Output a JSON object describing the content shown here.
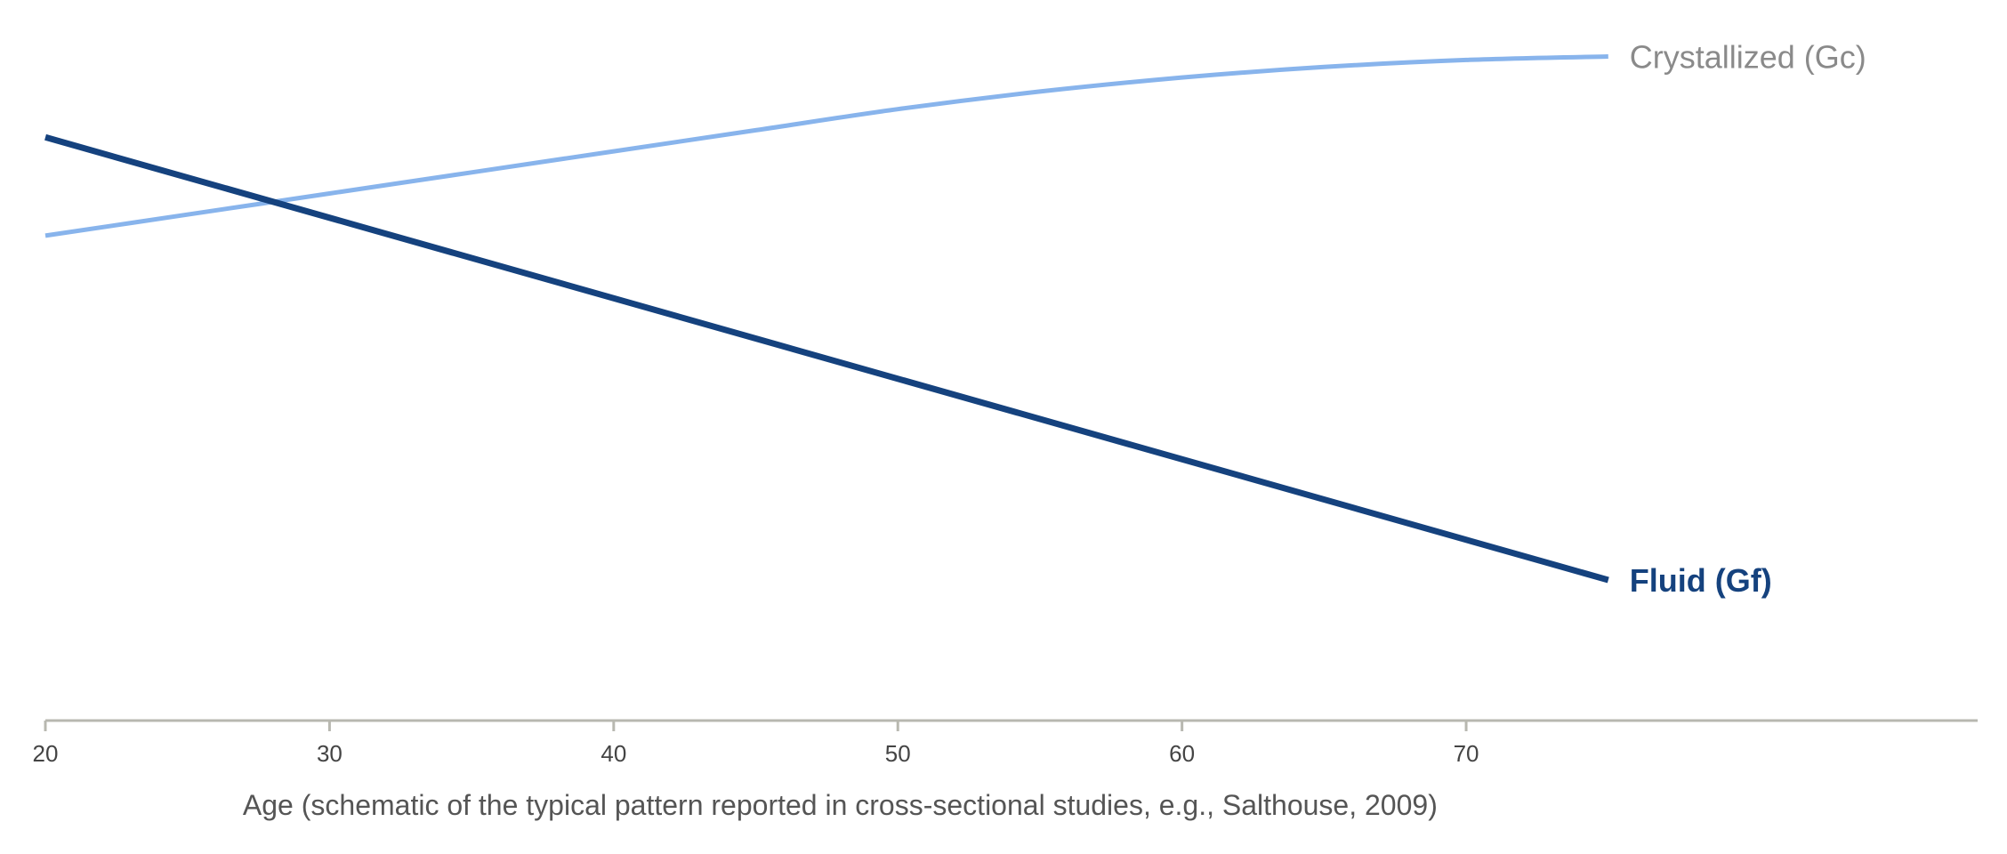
{
  "chart_data": {
    "type": "line",
    "title": "",
    "xlabel": "Age (schematic of the typical pattern reported in cross-sectional studies, e.g., Salthouse, 2009)",
    "ylabel": "",
    "x_ticks": [
      20,
      30,
      40,
      50,
      60,
      70
    ],
    "x_tick_labels": [
      "20",
      "30",
      "40",
      "50",
      "60",
      "70"
    ],
    "xlim": [
      20,
      88
    ],
    "ylim": [
      0,
      1
    ],
    "grid": false,
    "legend": "direct labels at line ends",
    "series": [
      {
        "key": "gc",
        "name": "Crystallized (Gc)",
        "color": "#88b4ec",
        "label_weight": "normal",
        "label_color": "#8a8a8a",
        "x": [
          20,
          25,
          30,
          35,
          40,
          45,
          50,
          55,
          60,
          65,
          70,
          75
        ],
        "y": [
          0.69,
          0.72,
          0.75,
          0.78,
          0.81,
          0.84,
          0.87,
          0.895,
          0.915,
          0.93,
          0.94,
          0.945
        ]
      },
      {
        "key": "gf",
        "name": "Fluid (Gf)",
        "color": "#15427e",
        "label_weight": "bold",
        "label_color": "#15427e",
        "x": [
          20,
          75
        ],
        "y": [
          0.83,
          0.2
        ]
      }
    ]
  }
}
